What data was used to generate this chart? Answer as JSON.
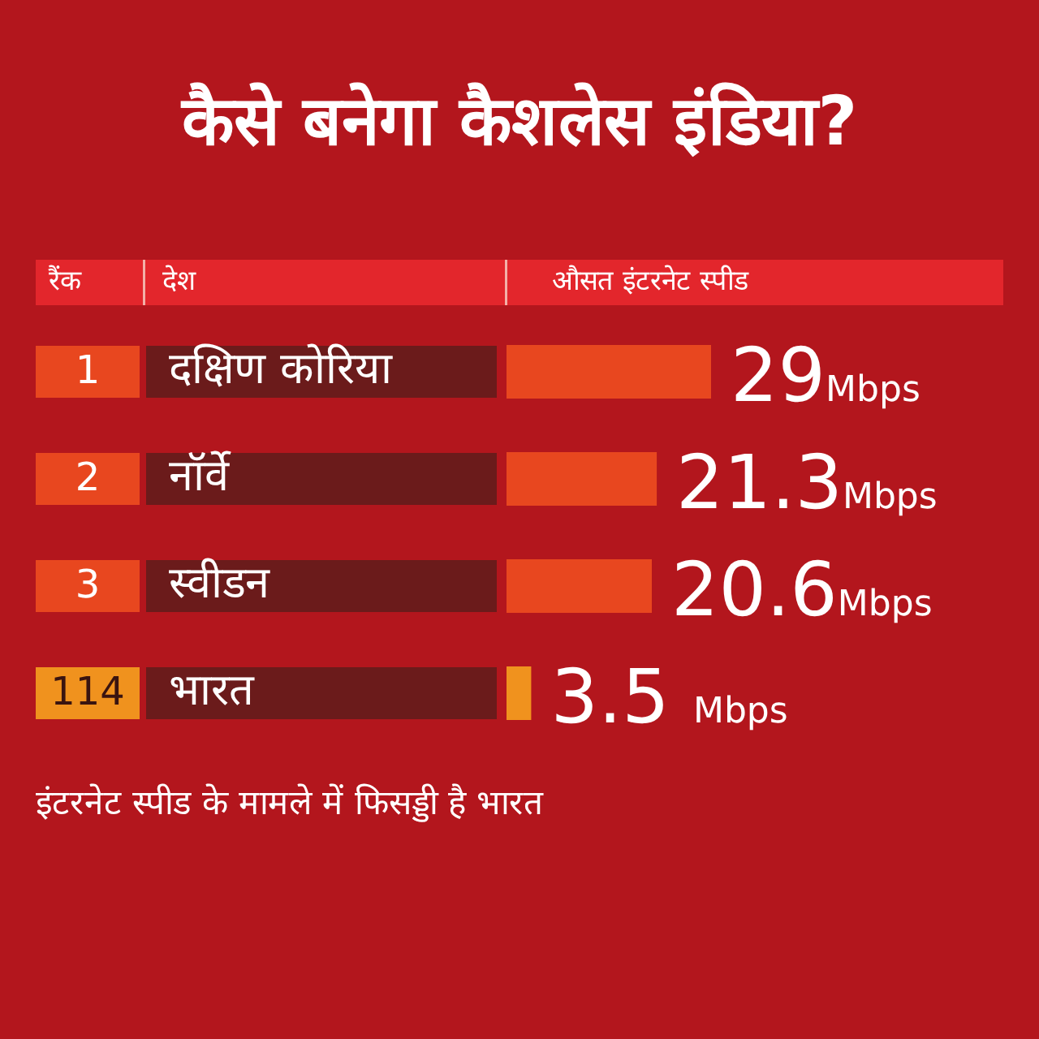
{
  "chart_data": {
    "type": "bar",
    "orientation": "horizontal",
    "title": "कैसे बनेगा कैशलेस इंडिया?",
    "ylabel": "देश",
    "xlabel": "औसत इंटरनेट स्पीड",
    "annotations": [
      "रैंक",
      "इंटरनेट स्पीड के मामले में फिसड्डी है भारत"
    ],
    "categories": [
      "दक्षिण कोरिया",
      "नॉर्वे",
      "स्वीडन",
      "भारत"
    ],
    "y2_categories": [
      "1",
      "2",
      "3",
      "114"
    ],
    "values": [
      29,
      21.3,
      20.6,
      3.5
    ],
    "colors": [
      "#e8471f",
      "#e8471f",
      "#e8471f",
      "#f0921e"
    ],
    "value_labels": [
      "29Mbps",
      "21.3Mbps",
      "20.6Mbps",
      "3.5 Mbps"
    ],
    "tick_labels": false,
    "legend": false
  }
}
